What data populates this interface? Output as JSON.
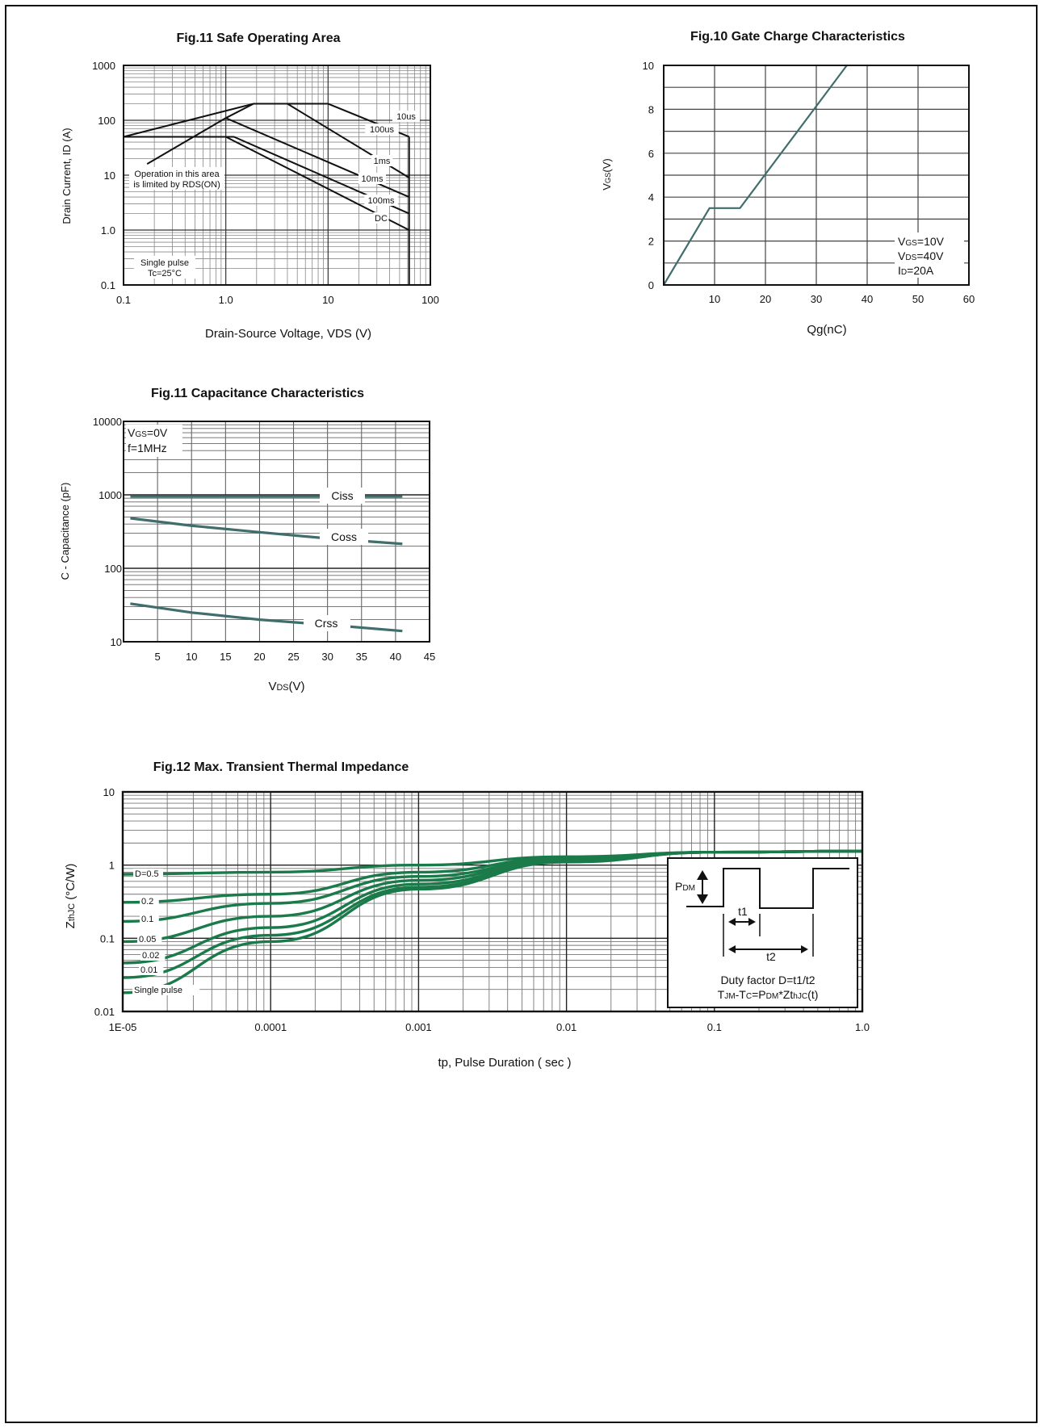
{
  "chart_data": [
    {
      "id": "soa",
      "type": "line",
      "title": "Fig.11  Safe Operating Area",
      "xlabel": "Drain-Source Voltage, VDS (V)",
      "ylabel": "Drain Current, ID (A)",
      "xscale": "log",
      "yscale": "log",
      "xlim": [
        0.1,
        100
      ],
      "ylim": [
        0.1,
        1000
      ],
      "xticks": [
        "0.1",
        "1.0",
        "10",
        "100"
      ],
      "yticks": [
        "0.1",
        "1.0",
        "10",
        "100",
        "1000"
      ],
      "grid": true,
      "annotation": [
        "Operation in this area",
        "is limited by RDS(ON)"
      ],
      "note": [
        "Single pulse",
        "Tc=25°C"
      ],
      "series": [
        {
          "name": "RDS(ON) limit",
          "x": [
            0.17,
            1.0,
            1.87
          ],
          "y": [
            16,
            110,
            200
          ]
        },
        {
          "name": "10us",
          "x": [
            0.1,
            1.87,
            10,
            62
          ],
          "y": [
            50,
            200,
            200,
            50
          ]
        },
        {
          "name": "100us",
          "x": [
            1.87,
            4,
            62
          ],
          "y": [
            200,
            200,
            9
          ]
        },
        {
          "name": "1ms",
          "x": [
            1.0,
            62
          ],
          "y": [
            110,
            4
          ]
        },
        {
          "name": "10ms",
          "x": [
            0.1,
            1.2,
            62
          ],
          "y": [
            50,
            50,
            2
          ]
        },
        {
          "name": "100ms",
          "x": [
            1.0,
            62
          ],
          "y": [
            50,
            1
          ]
        },
        {
          "name": "DC",
          "x": [
            62,
            62
          ],
          "y": [
            0.1,
            50
          ]
        }
      ]
    },
    {
      "id": "gate",
      "type": "line",
      "title": "Fig.10  Gate Charge Characteristics",
      "xlabel": "Qg(nC)",
      "ylabel": "VGS(V)",
      "xlim": [
        0,
        60
      ],
      "ylim": [
        0,
        10
      ],
      "xticks": [
        "10",
        "20",
        "30",
        "40",
        "50",
        "60"
      ],
      "yticks": [
        "0",
        "2",
        "4",
        "6",
        "8",
        "10"
      ],
      "grid": true,
      "conditions": [
        "VGS=10V",
        "VDS=40V",
        "ID=20A"
      ],
      "series": [
        {
          "x": [
            0,
            9,
            15,
            36
          ],
          "y": [
            0,
            3.5,
            3.5,
            10
          ]
        }
      ]
    },
    {
      "id": "cap",
      "type": "line",
      "title": "Fig.11  Capacitance Characteristics",
      "xlabel": "VDS(V)",
      "ylabel": "C - Capacitance (pF)",
      "yscale": "log",
      "xlim": [
        0,
        45
      ],
      "ylim": [
        10,
        10000
      ],
      "xticks": [
        "5",
        "10",
        "15",
        "20",
        "25",
        "30",
        "35",
        "40",
        "45"
      ],
      "yticks": [
        "10",
        "100",
        "1000",
        "10000"
      ],
      "grid": true,
      "conditions": [
        "VGS=0V",
        "f=1MHz"
      ],
      "series": [
        {
          "name": "Ciss",
          "x": [
            1,
            10,
            20,
            30,
            41
          ],
          "y": [
            950,
            950,
            950,
            950,
            950
          ]
        },
        {
          "name": "Coss",
          "x": [
            1,
            10,
            20,
            30,
            41
          ],
          "y": [
            480,
            380,
            310,
            255,
            215
          ]
        },
        {
          "name": "Crss",
          "x": [
            1,
            10,
            20,
            30,
            41
          ],
          "y": [
            33,
            25,
            20,
            17,
            14
          ]
        }
      ]
    },
    {
      "id": "thermal",
      "type": "line",
      "title": "Fig.12  Max. Transient Thermal Impedance",
      "xlabel": "tp, Pulse Duration ( sec )",
      "ylabel": "ZthJC (°C/W)",
      "xscale": "log",
      "yscale": "log",
      "xlim": [
        1e-05,
        1
      ],
      "ylim": [
        0.01,
        10
      ],
      "xticks": [
        "1E-05",
        "0.0001",
        "0.001",
        "0.01",
        "0.1",
        "1.0"
      ],
      "yticks": [
        "0.01",
        "0.1",
        "1",
        "10"
      ],
      "grid": true,
      "inset": {
        "pdm": "PDM",
        "t1": "t1",
        "t2": "t2",
        "line1": "Duty factor D=t1/t2",
        "line2": "TJM-TC=PDM*ZthJC(t)"
      },
      "x": [
        1e-05,
        0.0001,
        0.001,
        0.01,
        0.1,
        1
      ],
      "series": [
        {
          "name": "D=0.5",
          "y": [
            0.75,
            0.8,
            1.0,
            1.3,
            1.5,
            1.55
          ]
        },
        {
          "name": "0.2",
          "y": [
            0.31,
            0.4,
            0.8,
            1.25,
            1.5,
            1.55
          ]
        },
        {
          "name": "0.1",
          "y": [
            0.17,
            0.3,
            0.7,
            1.2,
            1.5,
            1.55
          ]
        },
        {
          "name": "0.05",
          "y": [
            0.09,
            0.2,
            0.62,
            1.18,
            1.5,
            1.55
          ]
        },
        {
          "name": "0.02",
          "y": [
            0.046,
            0.14,
            0.55,
            1.15,
            1.5,
            1.55
          ]
        },
        {
          "name": "0.01",
          "y": [
            0.029,
            0.11,
            0.5,
            1.12,
            1.5,
            1.55
          ]
        },
        {
          "name": "Single pulse",
          "y": [
            0.018,
            0.09,
            0.47,
            1.1,
            1.5,
            1.55
          ]
        }
      ]
    }
  ],
  "colors": {
    "line_dark": "#111111",
    "teal": "#3f6e6c",
    "green": "#1b7a4a"
  }
}
